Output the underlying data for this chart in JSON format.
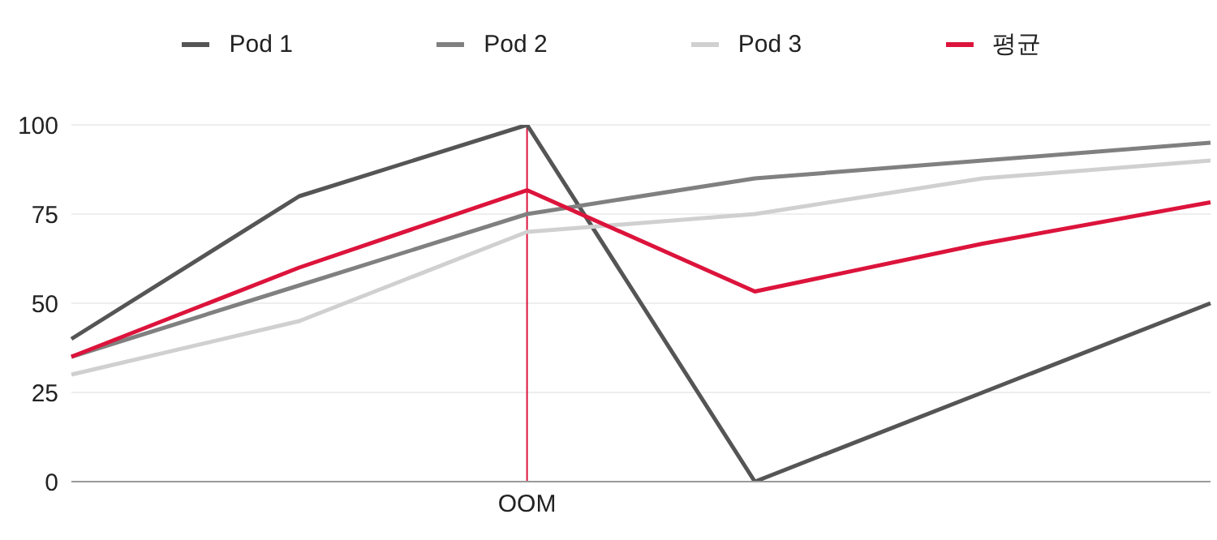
{
  "chart_data": {
    "type": "line",
    "categories": [
      null,
      null,
      "OOM",
      null,
      null,
      null
    ],
    "series": [
      {
        "name": "Pod 1",
        "color": "#555555",
        "values": [
          40,
          80,
          100,
          0,
          25,
          50
        ]
      },
      {
        "name": "Pod 2",
        "color": "#808080",
        "values": [
          35,
          55,
          75,
          85,
          90,
          95
        ]
      },
      {
        "name": "Pod 3",
        "color": "#d0d0d0",
        "values": [
          30,
          45,
          70,
          75,
          85,
          90
        ]
      },
      {
        "name": "평균",
        "color": "#dc143c",
        "values": [
          35,
          60,
          81.7,
          53.3,
          66.7,
          78.3
        ]
      }
    ],
    "ylim": [
      0,
      100
    ],
    "yticks": [
      0,
      25,
      50,
      75,
      100
    ],
    "grid": "y",
    "legend": "top",
    "marker": "none",
    "line_style": "solid",
    "ref_lines": [
      {
        "axis": "x",
        "value": "OOM",
        "color": "#dc143c"
      }
    ]
  }
}
